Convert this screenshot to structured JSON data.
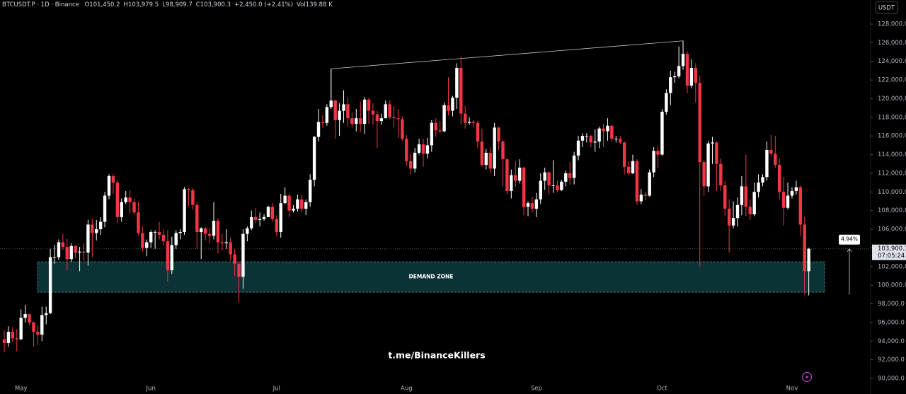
{
  "chart_data": {
    "type": "candlestick",
    "header_symbol": "BTCUSDT.P · 1D · Binance",
    "header_stats": [
      "O101,450.2",
      "H103,979.5",
      "L98,909.7",
      "C103,900.3",
      "+2,450.0 (+2.41%)",
      "Vol139.88 K"
    ],
    "currency": "USDT",
    "watermark": "t.me/BinanceKillers",
    "up_color": "#ffffff",
    "down_color": "#f23645",
    "categories": [
      null,
      null,
      null,
      null,
      "May",
      null,
      null,
      null,
      null,
      null,
      null,
      null,
      null,
      null,
      null,
      null,
      null,
      null,
      null,
      null,
      null,
      null,
      null,
      null,
      null,
      null,
      null,
      null,
      null,
      null,
      null,
      null,
      null,
      null,
      null,
      "Jun",
      null,
      null,
      null,
      null,
      null,
      null,
      null,
      null,
      null,
      null,
      null,
      null,
      null,
      null,
      null,
      null,
      null,
      null,
      null,
      null,
      null,
      null,
      null,
      null,
      null,
      null,
      null,
      null,
      null,
      "Jul",
      null,
      null,
      null,
      null,
      null,
      null,
      null,
      null,
      null,
      null,
      null,
      null,
      null,
      null,
      null,
      null,
      null,
      null,
      null,
      null,
      null,
      null,
      null,
      null,
      null,
      null,
      null,
      null,
      null,
      null,
      "Aug",
      null,
      null,
      null,
      null,
      null,
      null,
      null,
      null,
      null,
      null,
      null,
      null,
      null,
      null,
      null,
      null,
      null,
      null,
      null,
      null,
      null,
      null,
      null,
      null,
      null,
      null,
      null,
      null,
      null,
      null,
      "Sep",
      null,
      null,
      null,
      null,
      null,
      null,
      null,
      null,
      null,
      null,
      null,
      null,
      null,
      null,
      null,
      null,
      null,
      null,
      null,
      null,
      null,
      null,
      null,
      null,
      null,
      null,
      null,
      null,
      null,
      "Oct",
      null,
      null,
      null,
      null,
      null,
      null,
      null,
      null,
      null,
      null,
      null,
      null,
      null,
      null,
      null,
      null,
      null,
      null,
      null,
      null,
      null,
      null,
      null,
      null,
      null,
      null,
      null,
      null,
      null,
      null,
      "Nov",
      null,
      null,
      null,
      null
    ],
    "open": [
      94200,
      93800,
      95000,
      94300,
      94200,
      96500,
      96900,
      96000,
      95000,
      94700,
      96800,
      97000,
      103000,
      103000,
      104600,
      104100,
      102800,
      104200,
      103500,
      103600,
      103500,
      106500,
      105600,
      106000,
      106800,
      109600,
      111700,
      111000,
      107300,
      108900,
      109400,
      108900,
      107800,
      105600,
      104000,
      104600,
      105700,
      105700,
      105400,
      104700,
      101600,
      104300,
      105600,
      105700,
      110300,
      110200,
      108600,
      105700,
      106100,
      105500,
      105300,
      106900,
      104600,
      104500,
      104600,
      103300,
      102300,
      100900,
      105500,
      106100,
      107300,
      107000,
      107100,
      107300,
      108400,
      107100,
      105700,
      108800,
      109600,
      108000,
      108200,
      109200,
      108200,
      108900,
      111300,
      115900,
      117500,
      117400,
      119100,
      119800,
      117700,
      118700,
      119400,
      117900,
      117300,
      117900,
      117300,
      119900,
      118700,
      118300,
      117600,
      117900,
      119400,
      118000,
      117900,
      117800,
      115700,
      113300,
      112500,
      114200,
      115100,
      114100,
      115000,
      117400,
      116600,
      116500,
      119300,
      118700,
      120100,
      123300,
      118400,
      117400,
      117500,
      117400,
      115400,
      112900,
      114200,
      112500,
      116900,
      115400,
      113500,
      110100,
      111800,
      111200,
      112600,
      108400,
      108800,
      108200,
      109200,
      111200,
      112100,
      110700,
      110700,
      110200,
      111100,
      112000,
      111500,
      113900,
      115500,
      116000,
      116000,
      115300,
      115400,
      116800,
      116500,
      117100,
      115700,
      115700,
      115300,
      112700,
      112000,
      113300,
      109000,
      109700,
      109600,
      112100,
      114400,
      114000,
      118600,
      120600,
      122300,
      122400,
      123500,
      124800,
      121400,
      123300,
      121700,
      113200,
      110600,
      115200,
      115300,
      113000,
      110700,
      108200,
      106400,
      107200,
      108600,
      110600,
      108400,
      107600,
      110000,
      111000,
      111600,
      114500,
      114100,
      112900,
      110000,
      108300,
      109600,
      110100,
      110500,
      106500,
      101500
    ],
    "high": [
      95200,
      95600,
      95500,
      95300,
      97400,
      97900,
      96900,
      96100,
      95700,
      97700,
      97700,
      103900,
      104300,
      104900,
      105500,
      105000,
      104500,
      104300,
      104100,
      104500,
      107000,
      107100,
      107000,
      107300,
      110000,
      111900,
      111900,
      111300,
      109300,
      110100,
      110200,
      109300,
      108900,
      106300,
      104900,
      105900,
      105900,
      106800,
      106000,
      105900,
      105200,
      105900,
      106000,
      110500,
      110400,
      110400,
      108900,
      106200,
      106200,
      106100,
      108900,
      107200,
      105500,
      106000,
      105100,
      103900,
      102500,
      106000,
      106300,
      108000,
      108300,
      107800,
      107600,
      108500,
      108800,
      107500,
      109800,
      110500,
      109800,
      108600,
      109700,
      109700,
      109200,
      111900,
      116000,
      118900,
      118200,
      119400,
      123200,
      119900,
      119500,
      120900,
      120100,
      118500,
      118900,
      119700,
      120200,
      120100,
      119500,
      118700,
      118400,
      119800,
      119800,
      119200,
      118900,
      118100,
      116100,
      114100,
      114700,
      115700,
      115700,
      115800,
      117700,
      117900,
      117600,
      119600,
      122300,
      120300,
      123800,
      124500,
      119200,
      118000,
      117700,
      117600,
      116800,
      114600,
      114800,
      117400,
      117000,
      115600,
      113600,
      112400,
      113300,
      113500,
      112700,
      109000,
      109500,
      109900,
      112000,
      112600,
      112200,
      113400,
      111200,
      111300,
      112300,
      113200,
      114300,
      116000,
      116300,
      116300,
      116100,
      116700,
      117000,
      117300,
      117900,
      117200,
      116000,
      116000,
      115400,
      113300,
      114000,
      113500,
      110300,
      110000,
      112400,
      114800,
      114900,
      118900,
      121000,
      123000,
      122900,
      125600,
      126200,
      125100,
      124200,
      123800,
      122500,
      113400,
      115500,
      115900,
      115400,
      113600,
      111200,
      109200,
      109000,
      109400,
      111700,
      114000,
      109200,
      111000,
      111900,
      111900,
      115400,
      116100,
      116000,
      113600,
      111600,
      111000,
      110500,
      111200,
      110700,
      107300,
      104000
    ],
    "low": [
      92800,
      93400,
      93900,
      92900,
      94100,
      96000,
      95700,
      93400,
      93600,
      94000,
      95800,
      96900,
      102300,
      102700,
      103800,
      101600,
      102500,
      102900,
      101500,
      102600,
      102100,
      103000,
      104800,
      105400,
      106200,
      109200,
      109800,
      106600,
      106800,
      108700,
      107700,
      107500,
      105300,
      103600,
      103100,
      104000,
      103900,
      104900,
      104300,
      100400,
      101200,
      103900,
      104900,
      105400,
      108500,
      108100,
      103900,
      102800,
      104800,
      104500,
      104900,
      103400,
      103700,
      103900,
      102600,
      101000,
      98200,
      99600,
      104700,
      105900,
      106700,
      106300,
      106900,
      107300,
      106800,
      105300,
      105100,
      108700,
      107300,
      107800,
      107900,
      107800,
      107500,
      108400,
      110600,
      115400,
      116900,
      117100,
      118900,
      115700,
      116000,
      117400,
      117000,
      116900,
      116500,
      116400,
      116200,
      117300,
      117200,
      114700,
      117200,
      117900,
      117800,
      116900,
      115800,
      115500,
      112800,
      111900,
      112100,
      114000,
      112700,
      113600,
      114300,
      115900,
      116300,
      116400,
      118200,
      118100,
      118900,
      117200,
      116800,
      117200,
      116900,
      114700,
      112700,
      112400,
      112000,
      111700,
      114500,
      110600,
      109700,
      109300,
      110500,
      110900,
      107500,
      107400,
      107800,
      107300,
      108700,
      110200,
      109700,
      109900,
      110000,
      110100,
      110600,
      110800,
      110800,
      113400,
      114800,
      115300,
      114800,
      114300,
      114700,
      114800,
      115500,
      115400,
      115300,
      115100,
      111900,
      111800,
      111900,
      108600,
      108700,
      109100,
      109500,
      111600,
      112600,
      113900,
      118300,
      119300,
      121700,
      122200,
      123100,
      120600,
      121100,
      119600,
      102000,
      109600,
      110000,
      113000,
      110100,
      110100,
      107400,
      103500,
      106100,
      106300,
      107500,
      107400,
      107000,
      107400,
      109400,
      110600,
      111200,
      113800,
      112600,
      109200,
      106400,
      108100,
      109300,
      109700,
      105300,
      99000,
      98900
    ],
    "close": [
      93800,
      95000,
      94300,
      94200,
      96500,
      96900,
      96000,
      95000,
      94700,
      96800,
      97000,
      103000,
      103000,
      104600,
      104100,
      102800,
      104200,
      103500,
      103600,
      103500,
      106500,
      105600,
      106000,
      106800,
      109600,
      111700,
      111000,
      107300,
      108900,
      109400,
      108900,
      107800,
      105600,
      104000,
      104600,
      105700,
      105700,
      105400,
      104700,
      101600,
      104300,
      105600,
      105700,
      110300,
      110200,
      108600,
      105700,
      106100,
      105500,
      105300,
      106900,
      104600,
      104500,
      104600,
      103300,
      102300,
      100900,
      105500,
      106100,
      107300,
      107000,
      107100,
      107300,
      108400,
      107100,
      105700,
      108800,
      109600,
      108000,
      108200,
      109200,
      108200,
      108900,
      111300,
      115900,
      117500,
      117400,
      119100,
      119800,
      117700,
      118700,
      119400,
      117900,
      117300,
      117900,
      117300,
      119900,
      118700,
      118300,
      117600,
      117900,
      119400,
      118000,
      117900,
      117800,
      115700,
      113300,
      112500,
      114200,
      115100,
      114100,
      115000,
      117400,
      116600,
      116500,
      119300,
      118700,
      120100,
      123300,
      118400,
      117400,
      117500,
      117400,
      115400,
      112900,
      114200,
      112500,
      116900,
      115400,
      113500,
      110100,
      111800,
      111200,
      112600,
      108400,
      108800,
      108200,
      109200,
      111200,
      112100,
      110700,
      110700,
      110200,
      111100,
      112000,
      111500,
      113900,
      115500,
      116000,
      116000,
      115300,
      115400,
      116800,
      116500,
      117100,
      115700,
      115700,
      115300,
      112700,
      112000,
      113300,
      109000,
      109700,
      109600,
      112100,
      114400,
      114000,
      118600,
      120600,
      122300,
      122400,
      123500,
      124800,
      121400,
      123300,
      121700,
      113200,
      110600,
      115200,
      115300,
      113000,
      110700,
      108200,
      106400,
      107200,
      108600,
      110600,
      108400,
      107600,
      110000,
      111000,
      111600,
      114500,
      114100,
      112900,
      110000,
      108300,
      109600,
      110100,
      110500,
      106500,
      101500,
      103900
    ],
    "ylim": [
      90000,
      128000
    ],
    "yticks": [
      {
        "value": 90000,
        "label": "90,000.0"
      },
      {
        "value": 92000,
        "label": "92,000.0"
      },
      {
        "value": 94000,
        "label": "94,000.0"
      },
      {
        "value": 96000,
        "label": "96,000.0"
      },
      {
        "value": 98000,
        "label": "98,000.0"
      },
      {
        "value": 100000,
        "label": "100,000.0"
      },
      {
        "value": 102000,
        "label": "102,000.0"
      },
      {
        "value": 104000,
        "label": "104,000.0"
      },
      {
        "value": 106000,
        "label": "106,000.0"
      },
      {
        "value": 108000,
        "label": "108,000.0"
      },
      {
        "value": 110000,
        "label": "110,000.0"
      },
      {
        "value": 112000,
        "label": "112,000.0"
      },
      {
        "value": 114000,
        "label": "114,000.0"
      },
      {
        "value": 116000,
        "label": "116,000.0"
      },
      {
        "value": 118000,
        "label": "118,000.0"
      },
      {
        "value": 120000,
        "label": "120,000.0"
      },
      {
        "value": 122000,
        "label": "122,000.0"
      },
      {
        "value": 124000,
        "label": "124,000.0"
      },
      {
        "value": 126000,
        "label": "126,000.0"
      },
      {
        "value": 128000,
        "label": "128,000.0"
      }
    ],
    "last_price": {
      "value": 103900.3,
      "label": "103,900.3",
      "countdown": "07:05:24"
    },
    "zone": {
      "label": "DEMAND ZONE",
      "low": 99250,
      "high": 102500
    },
    "trendline": [
      123200,
      126200
    ],
    "measure": {
      "label": "4.94%",
      "from": 99000,
      "to": 103900
    }
  }
}
